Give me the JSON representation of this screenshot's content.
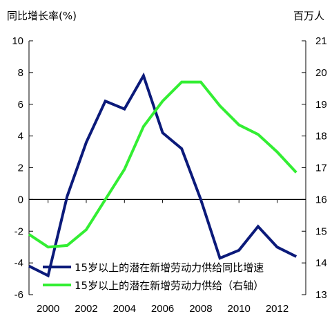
{
  "chart_data": {
    "type": "line",
    "left_axis_title": "同比增长率(%)",
    "right_axis_title": "百万人",
    "x": [
      1999,
      2000,
      2001,
      2002,
      2003,
      2004,
      2005,
      2006,
      2007,
      2008,
      2009,
      2010,
      2011,
      2012,
      2013
    ],
    "x_tick_labels": [
      "2000",
      "2002",
      "2004",
      "2006",
      "2008",
      "2010",
      "2012"
    ],
    "x_ticks": [
      2000,
      2002,
      2004,
      2006,
      2008,
      2010,
      2012
    ],
    "xlim": [
      1999,
      2013.5
    ],
    "y_left_lim": [
      -6,
      10
    ],
    "y_left_ticks": [
      -6,
      -4,
      -2,
      0,
      2,
      4,
      6,
      8,
      10
    ],
    "y_right_lim": [
      13,
      21
    ],
    "y_right_ticks": [
      13,
      14,
      15,
      16,
      17,
      18,
      19,
      20,
      21
    ],
    "grid": false,
    "legend_position": "bottom-left",
    "series": [
      {
        "name": "15岁以上的潜在新增劳动力供给同比增速",
        "axis": "left",
        "color": "#0b1a7a",
        "values": [
          -4.2,
          -4.8,
          0.2,
          3.6,
          6.2,
          5.7,
          7.8,
          4.2,
          3.2,
          0.0,
          -3.7,
          -3.2,
          -1.7,
          -3.0,
          -3.6
        ]
      },
      {
        "name": "15岁以上的潜在新增劳动力供给（右轴）",
        "axis": "right",
        "color": "#33ee33",
        "values": [
          14.9,
          14.5,
          14.55,
          15.05,
          16.0,
          16.95,
          18.3,
          19.1,
          19.7,
          19.7,
          18.95,
          18.35,
          18.05,
          17.5,
          16.85
        ]
      }
    ]
  }
}
